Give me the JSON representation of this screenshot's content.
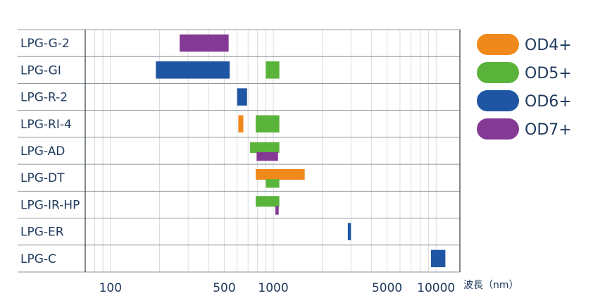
{
  "chart_data": {
    "type": "bar",
    "orientation": "horizontal-range",
    "x_scale": "log",
    "xlim": [
      70,
      14000
    ],
    "xticks": [
      100,
      500,
      1000,
      5000,
      10000
    ],
    "xtick_labels": [
      "100",
      "500",
      "1000",
      "5000",
      "10000"
    ],
    "xlabel": "波長（nm）",
    "grid": true,
    "legend_position": "right",
    "categories": [
      "LPG-G-2",
      "LPG-GI",
      "LPG-R-2",
      "LPG-RI-4",
      "LPG-AD",
      "LPG-DT",
      "LPG-IR-HP",
      "LPG-ER",
      "LPG-C"
    ],
    "series": [
      {
        "name": "OD4+",
        "color": "#f0891c",
        "ranges": [
          {
            "category": "LPG-RI-4",
            "start": 610,
            "end": 655
          },
          {
            "category": "LPG-DT",
            "start": 780,
            "end": 1560,
            "part": "top"
          }
        ]
      },
      {
        "name": "OD5+",
        "color": "#5ab43c",
        "ranges": [
          {
            "category": "LPG-GI",
            "start": 900,
            "end": 1090
          },
          {
            "category": "LPG-RI-4",
            "start": 780,
            "end": 1090
          },
          {
            "category": "LPG-AD",
            "start": 720,
            "end": 1090,
            "part": "top"
          },
          {
            "category": "LPG-DT",
            "start": 900,
            "end": 1090,
            "part": "bottom"
          },
          {
            "category": "LPG-IR-HP",
            "start": 780,
            "end": 1090,
            "part": "top"
          }
        ]
      },
      {
        "name": "OD6+",
        "color": "#1f56a4",
        "ranges": [
          {
            "category": "LPG-GI",
            "start": 190,
            "end": 540
          },
          {
            "category": "LPG-R-2",
            "start": 600,
            "end": 690
          },
          {
            "category": "LPG-ER",
            "start": 2870,
            "end": 3000
          },
          {
            "category": "LPG-C",
            "start": 9300,
            "end": 11400
          }
        ]
      },
      {
        "name": "OD7+",
        "color": "#843a95",
        "ranges": [
          {
            "category": "LPG-G-2",
            "start": 266,
            "end": 532
          },
          {
            "category": "LPG-AD",
            "start": 790,
            "end": 1070,
            "part": "bottom"
          },
          {
            "category": "LPG-IR-HP",
            "start": 1030,
            "end": 1080,
            "part": "bottom"
          }
        ]
      }
    ]
  }
}
